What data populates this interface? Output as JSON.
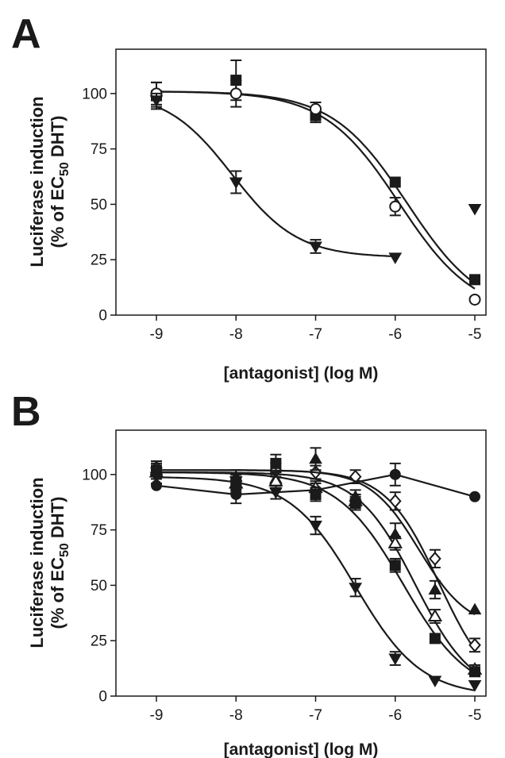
{
  "chart_data": [
    {
      "panel": "A",
      "type": "scatter",
      "xlabel": "[antagonist] (log M)",
      "ylabel_line1": "Luciferase induction",
      "ylabel_line2_pre": "(% of EC",
      "ylabel_line2_sub": "50",
      "ylabel_line2_post": " DHT)",
      "xlim": [
        -9.5,
        -4.75
      ],
      "ylim": [
        0,
        120
      ],
      "xticks": [
        -9,
        -8,
        -7,
        -6,
        -5
      ],
      "yticks": [
        0,
        25,
        50,
        75,
        100
      ],
      "grid": false,
      "colors": {
        "ink": "#1a1a1a"
      },
      "series": [
        {
          "marker": "square-filled",
          "x": [
            -9,
            -8,
            -7,
            -6,
            -5
          ],
          "y": [
            99,
            106,
            90,
            60,
            16
          ],
          "err": [
            6,
            9,
            3,
            0,
            0
          ],
          "curve": {
            "top": 101,
            "bottom": 0,
            "logIC50": -5.85,
            "hill": 0.92
          }
        },
        {
          "marker": "circle-open",
          "x": [
            -9,
            -8,
            -7,
            -6,
            -5
          ],
          "y": [
            100,
            100,
            93,
            49,
            7
          ],
          "err": [
            5,
            6,
            3,
            4,
            0
          ],
          "curve": {
            "top": 101,
            "bottom": 0,
            "logIC50": -5.95,
            "hill": 0.92
          }
        },
        {
          "marker": "triangle-down-filled",
          "x": [
            -9,
            -8,
            -7,
            -6,
            -5
          ],
          "y": [
            97,
            60,
            31,
            26,
            48
          ],
          "err": [
            3,
            5,
            3,
            0,
            0
          ],
          "curve": {
            "top": 101,
            "bottom": 26,
            "logIC50": -8.05,
            "hill": 1.05,
            "xmax": -6
          }
        }
      ]
    },
    {
      "panel": "B",
      "type": "scatter",
      "xlabel": "[antagonist] (log M)",
      "ylabel_line1": "Luciferase induction",
      "ylabel_line2_pre": "(% of EC",
      "ylabel_line2_sub": "50",
      "ylabel_line2_post": " DHT)",
      "xlim": [
        -9.5,
        -4.75
      ],
      "ylim": [
        0,
        120
      ],
      "xticks": [
        -9,
        -8,
        -7,
        -6,
        -5
      ],
      "yticks": [
        0,
        25,
        50,
        75,
        100
      ],
      "grid": false,
      "colors": {
        "ink": "#1a1a1a"
      },
      "series": [
        {
          "marker": "circle-filled",
          "x": [
            -9,
            -8,
            -7,
            -6,
            -5
          ],
          "y": [
            95,
            91,
            93,
            100,
            90
          ],
          "err": [
            0,
            4,
            3,
            5,
            0
          ],
          "curve": {
            "points": [
              [
                -9,
                95
              ],
              [
                -8,
                91
              ],
              [
                -7,
                93
              ],
              [
                -6,
                100
              ],
              [
                -5,
                90
              ]
            ]
          }
        },
        {
          "marker": "diamond-open",
          "x": [
            -9,
            -8,
            -7.5,
            -7,
            -6.5,
            -6,
            -5.5,
            -5
          ],
          "y": [
            103,
            97,
            102,
            101,
            99,
            88,
            62,
            23
          ],
          "err": [
            3,
            3,
            3,
            3,
            3,
            4,
            4,
            3
          ],
          "curve": {
            "top": 102,
            "bottom": 0,
            "logIC50": -5.45,
            "hill": 1.3
          }
        },
        {
          "marker": "triangle-up-filled",
          "x": [
            -9,
            -8,
            -7.5,
            -7,
            -6.5,
            -6,
            -5.5,
            -5
          ],
          "y": [
            102,
            99,
            98,
            107,
            90,
            73,
            48,
            39
          ],
          "err": [
            4,
            3,
            3,
            5,
            3,
            5,
            4,
            0
          ],
          "curve": {
            "top": 102,
            "bottom": 30,
            "logIC50": -5.7,
            "hill": 1.4
          }
        },
        {
          "marker": "triangle-up-open",
          "x": [
            -9,
            -8,
            -7.5,
            -7,
            -6.5,
            -6,
            -5.5,
            -5
          ],
          "y": [
            101,
            96,
            97,
            94,
            88,
            69,
            36,
            12
          ],
          "err": [
            3,
            3,
            3,
            3,
            3,
            3,
            3,
            2
          ],
          "curve": {
            "top": 101,
            "bottom": 0,
            "logIC50": -5.75,
            "hill": 1.2
          }
        },
        {
          "marker": "square-filled",
          "x": [
            -9,
            -8,
            -7.5,
            -7,
            -6.5,
            -6,
            -5.5,
            -5
          ],
          "y": [
            102,
            95,
            105,
            91,
            87,
            59,
            26,
            11
          ],
          "err": [
            3,
            3,
            4,
            3,
            3,
            3,
            0,
            2
          ],
          "curve": {
            "top": 101,
            "bottom": 0,
            "logIC50": -5.9,
            "hill": 1.05
          }
        },
        {
          "marker": "triangle-down-filled",
          "x": [
            -9,
            -8,
            -7.5,
            -7,
            -6.5,
            -6,
            -5.5,
            -5
          ],
          "y": [
            99,
            97,
            92,
            77,
            49,
            17,
            7,
            5
          ],
          "err": [
            3,
            3,
            3,
            4,
            4,
            3,
            0,
            0
          ],
          "curve": {
            "top": 99,
            "bottom": 0,
            "logIC50": -6.5,
            "hill": 1.05
          }
        }
      ]
    }
  ]
}
